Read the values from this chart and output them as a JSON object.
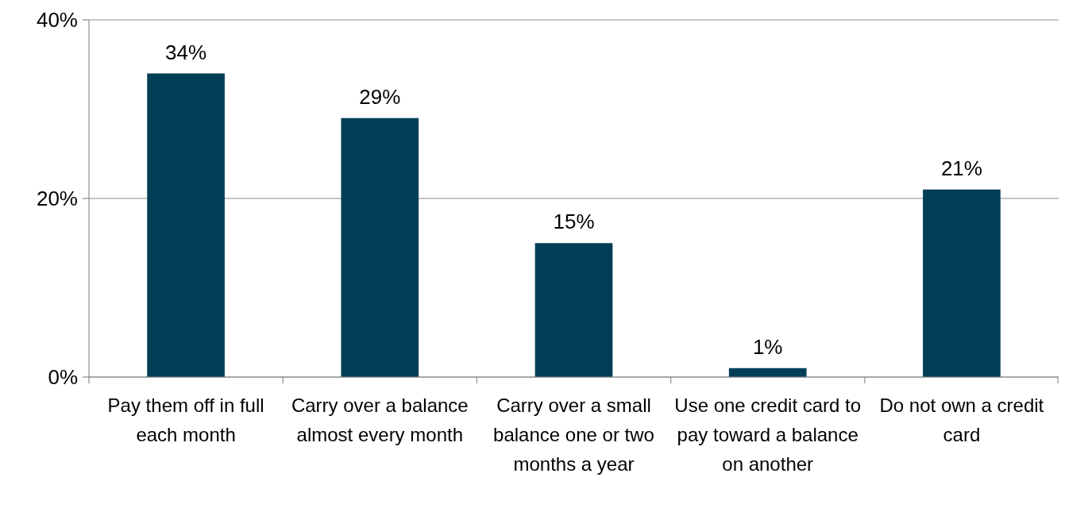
{
  "chart_data": {
    "type": "bar",
    "categories": [
      "Pay them off in full each month",
      "Carry over a balance almost every month",
      "Carry over a small balance one or two months a year",
      "Use one credit card to pay toward a balance on another",
      "Do not own a credit card"
    ],
    "values": [
      34,
      29,
      15,
      1,
      21
    ],
    "value_labels": [
      "34%",
      "29%",
      "15%",
      "1%",
      "21%"
    ],
    "color": "#023f57",
    "ylim": [
      0,
      40
    ],
    "yticks": [
      {
        "value": 0,
        "label": "0%"
      },
      {
        "value": 20,
        "label": "20%"
      },
      {
        "value": 40,
        "label": "40%"
      }
    ],
    "grid": "y"
  }
}
